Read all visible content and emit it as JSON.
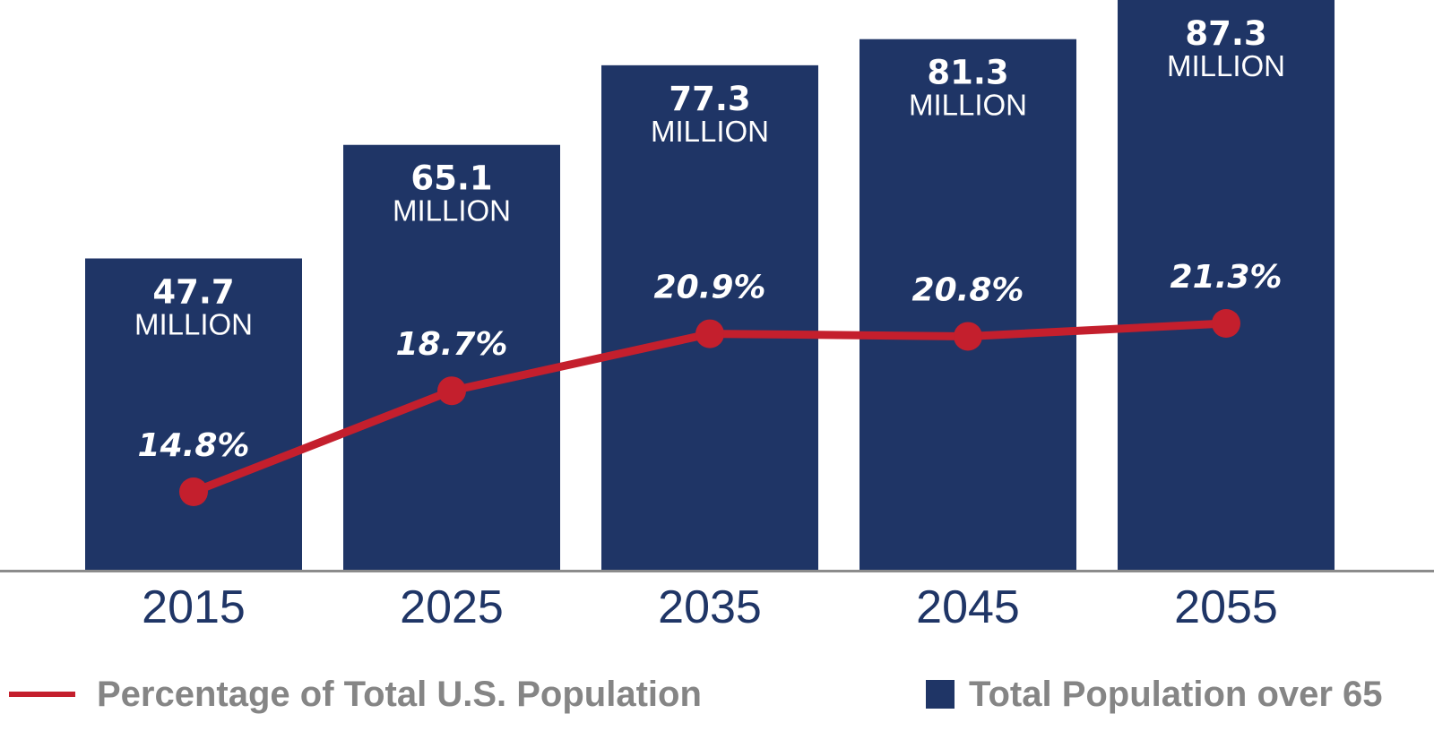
{
  "chart_data": {
    "type": "bar",
    "categories": [
      "2015",
      "2025",
      "2035",
      "2045",
      "2055"
    ],
    "series": [
      {
        "name": "Total Population over 65",
        "kind": "bar",
        "values": [
          47.7,
          65.1,
          77.3,
          81.3,
          87.3
        ],
        "value_labels": [
          "47.7",
          "65.1",
          "77.3",
          "81.3",
          "87.3"
        ],
        "unit_label": "MILLION",
        "color": "#1f3566"
      },
      {
        "name": "Percentage of Total U.S. Population",
        "kind": "line",
        "values": [
          14.8,
          18.7,
          20.9,
          20.8,
          21.3
        ],
        "value_labels": [
          "14.8%",
          "18.7%",
          "20.9%",
          "20.8%",
          "21.3%"
        ],
        "color": "#c41f2d"
      }
    ],
    "title": "",
    "xlabel": "",
    "ylabel": "",
    "ylim": [
      0,
      87.3
    ],
    "grid": false,
    "legend_position": "bottom"
  },
  "colors": {
    "bar": "#1f3566",
    "line": "#c41f2d",
    "axis": "#8c8c8c",
    "tick_label": "#1f3566",
    "legend_text": "#858585"
  }
}
